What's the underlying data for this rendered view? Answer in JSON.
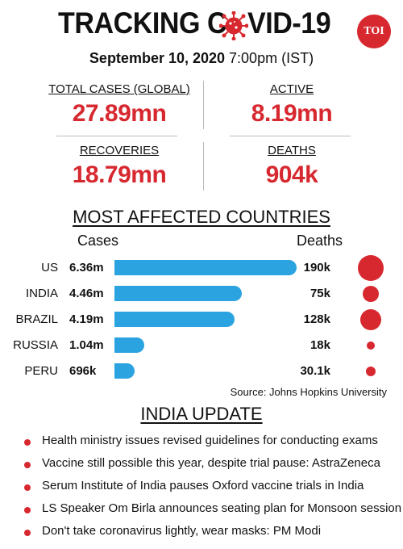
{
  "title": {
    "left": "TRACKING C",
    "right": "VID-19",
    "badge": "TOI"
  },
  "date": {
    "bold": "September 10, 2020",
    "rest": " 7:00pm (IST)"
  },
  "stats": [
    {
      "label": "TOTAL CASES (GLOBAL)",
      "value": "27.89mn"
    },
    {
      "label": "ACTIVE",
      "value": "8.19mn"
    },
    {
      "label": "RECOVERIES",
      "value": "18.79mn"
    },
    {
      "label": "DEATHS",
      "value": "904k"
    }
  ],
  "chart_data": {
    "type": "bar",
    "title": "MOST AFFECTED COUNTRIES",
    "column_headers": {
      "cases": "Cases",
      "deaths": "Deaths"
    },
    "categories": [
      "US",
      "INDIA",
      "BRAZIL",
      "RUSSIA",
      "PERU"
    ],
    "series": [
      {
        "name": "Cases",
        "values": [
          6360000,
          4460000,
          4190000,
          1040000,
          696000
        ],
        "labels": [
          "6.36m",
          "4.46m",
          "4.19m",
          "1.04m",
          "696k"
        ]
      },
      {
        "name": "Deaths",
        "values": [
          190000,
          75000,
          128000,
          18000,
          30100
        ],
        "labels": [
          "190k",
          "75k",
          "128k",
          "18k",
          "30.1k"
        ]
      }
    ],
    "bar_color": "#2aa3e0",
    "death_color": "#d7282f",
    "source": "Source: Johns Hopkins University"
  },
  "india_update": {
    "title": "INDIA UPDATE",
    "items": [
      "Health ministry issues revised guidelines for conducting exams",
      "Vaccine still possible this year, despite trial pause: AstraZeneca",
      "Serum Institute of India pauses Oxford vaccine trials in India",
      "LS Speaker Om Birla announces seating plan for Monsoon session",
      "Don't take coronavirus lightly, wear masks: PM Modi"
    ]
  },
  "colors": {
    "accent": "#d7282f",
    "bar": "#2aa3e0"
  }
}
